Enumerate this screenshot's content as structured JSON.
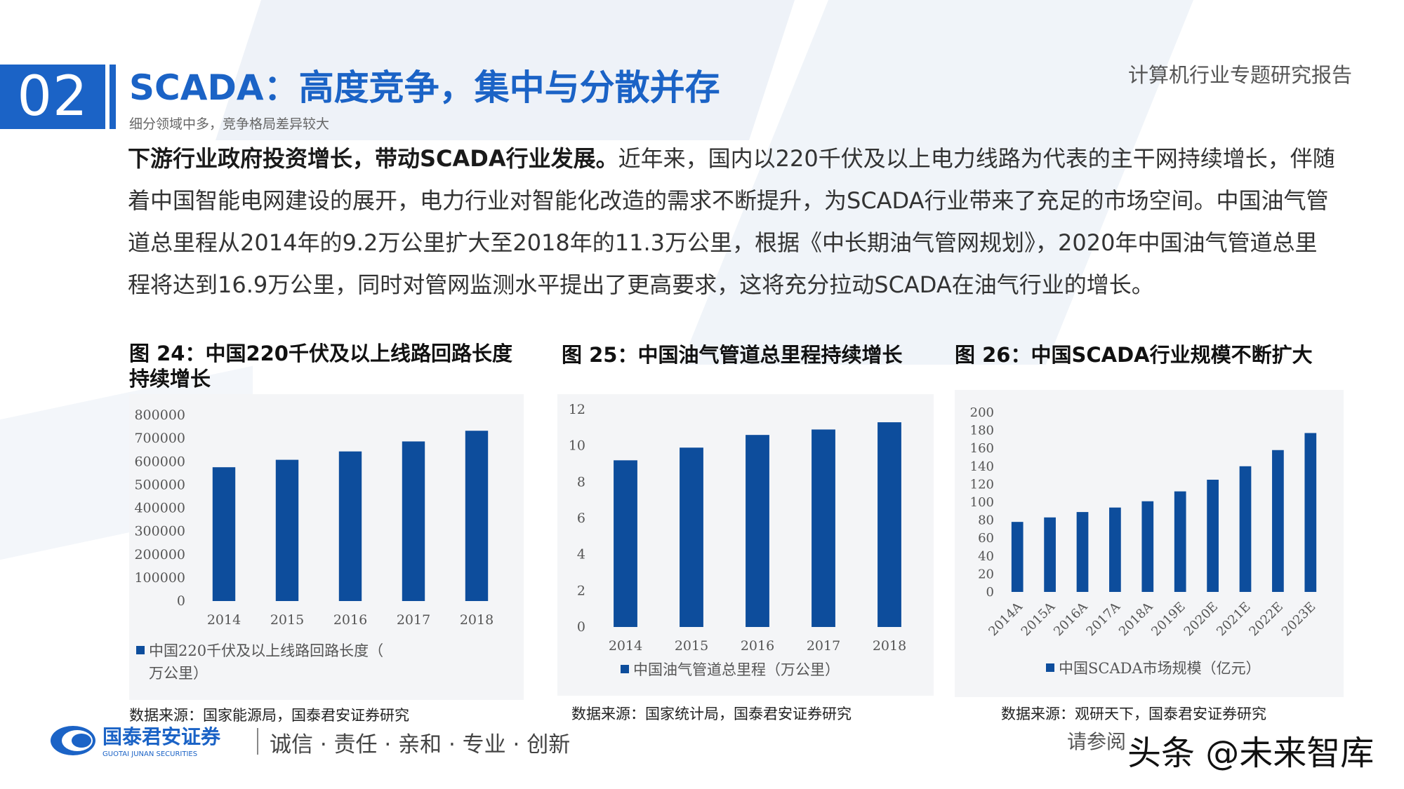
{
  "header": {
    "section_number": "02",
    "title": "SCADA：高度竞争，集中与分散并存",
    "subtitle": "细分领域中多，竞争格局差异较大",
    "report_label": "计算机行业专题研究报告"
  },
  "body": {
    "lead": "下游行业政府投资增长，带动SCADA行业发展。",
    "text": "近年来，国内以220千伏及以上电力线路为代表的主干网持续增长，伴随着中国智能电网建设的展开，电力行业对智能化改造的需求不断提升，为SCADA行业带来了充足的市场空间。中国油气管道总里程从2014年的9.2万公里扩大至2018年的11.3万公里，根据《中长期油气管网规划》，2020年中国油气管道总里程将达到16.9万公里，同时对管网监测水平提出了更高要求，这将充分拉动SCADA在油气行业的增长。"
  },
  "figures": [
    {
      "title": "图 24：中国220千伏及以上线路回路长度持续增长",
      "source": "数据来源：国家能源局，国泰君安证券研究"
    },
    {
      "title": "图 25：中国油气管道总里程持续增长",
      "source": "数据来源：国家统计局，国泰君安证券研究"
    },
    {
      "title": "图 26：中国SCADA行业规模不断扩大",
      "source": "数据来源：观研天下，国泰君安证券研究"
    }
  ],
  "chart_data": [
    {
      "type": "bar",
      "categories": [
        "2014",
        "2015",
        "2016",
        "2017",
        "2018"
      ],
      "series": [
        {
          "name": "中国220千伏及以上线路回路长度（万公里）",
          "values": [
            576000,
            608000,
            644000,
            687000,
            733000
          ]
        }
      ],
      "ylim": [
        0,
        800000
      ],
      "yticks": [
        0,
        100000,
        200000,
        300000,
        400000,
        500000,
        600000,
        700000,
        800000
      ],
      "color": "#0d4d9c",
      "legend": "bottom"
    },
    {
      "type": "bar",
      "categories": [
        "2014",
        "2015",
        "2016",
        "2017",
        "2018"
      ],
      "series": [
        {
          "name": "中国油气管道总里程（万公里）",
          "values": [
            9.2,
            9.9,
            10.6,
            10.9,
            11.3
          ]
        }
      ],
      "ylim": [
        0,
        12
      ],
      "yticks": [
        0,
        2,
        4,
        6,
        8,
        10,
        12
      ],
      "color": "#0d4d9c",
      "legend": "bottom"
    },
    {
      "type": "bar",
      "categories": [
        "2014A",
        "2015A",
        "2016A",
        "2017A",
        "2018A",
        "2019E",
        "2020E",
        "2021E",
        "2022E",
        "2023E"
      ],
      "series": [
        {
          "name": "中国SCADA市场规模（亿元）",
          "values": [
            78,
            83,
            89,
            94,
            101,
            112,
            125,
            140,
            158,
            177
          ]
        }
      ],
      "ylim": [
        0,
        200
      ],
      "yticks": [
        0,
        20,
        40,
        60,
        80,
        100,
        120,
        140,
        160,
        180,
        200
      ],
      "color": "#0d4d9c",
      "legend": "bottom"
    }
  ],
  "footer": {
    "logo_text": "国泰君安证券",
    "logo_subtext": "GUOTAI JUNAN SECURITIES",
    "slogan": "诚信 · 责任 · 亲和 · 专业 · 创新",
    "disclaimer": "请参阅",
    "watermark": "头条 @未来智库"
  }
}
